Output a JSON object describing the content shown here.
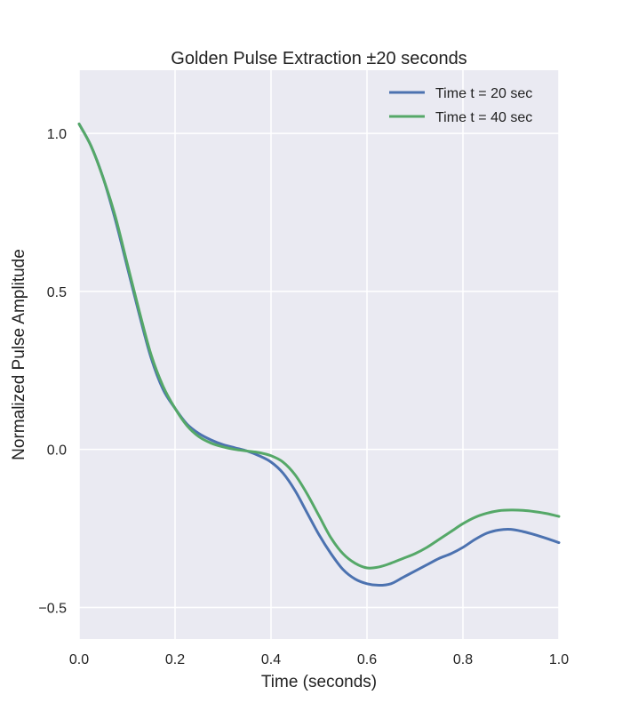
{
  "chart_data": {
    "type": "line",
    "title": "Golden Pulse Extraction ±20 seconds",
    "xlabel": "Time (seconds)",
    "ylabel": "Normalized Pulse Amplitude",
    "xlim": [
      0.0,
      1.0
    ],
    "ylim": [
      -0.6,
      1.2
    ],
    "xticks": [
      0.0,
      0.2,
      0.4,
      0.6,
      0.8,
      1.0
    ],
    "xtick_labels": [
      "0.0",
      "0.2",
      "0.4",
      "0.6",
      "0.8",
      "1.0"
    ],
    "yticks": [
      -0.5,
      0.0,
      0.5,
      1.0
    ],
    "ytick_labels": [
      "−0.5",
      "0.0",
      "0.5",
      "1.0"
    ],
    "grid": true,
    "legend_position": "top-right",
    "background_color": "#eaeaf2",
    "grid_color": "#ffffff",
    "series": [
      {
        "name": "Time t = 20 sec",
        "color": "#4c72b0",
        "x": [
          0.0,
          0.025,
          0.05,
          0.075,
          0.1,
          0.125,
          0.15,
          0.175,
          0.2,
          0.225,
          0.25,
          0.275,
          0.3,
          0.325,
          0.35,
          0.375,
          0.4,
          0.425,
          0.45,
          0.475,
          0.5,
          0.525,
          0.55,
          0.575,
          0.6,
          0.625,
          0.65,
          0.675,
          0.7,
          0.725,
          0.75,
          0.775,
          0.8,
          0.825,
          0.85,
          0.875,
          0.9,
          0.925,
          0.95,
          0.975,
          1.0
        ],
        "y": [
          1.03,
          0.96,
          0.86,
          0.73,
          0.58,
          0.43,
          0.29,
          0.19,
          0.13,
          0.08,
          0.05,
          0.03,
          0.015,
          0.005,
          -0.005,
          -0.02,
          -0.04,
          -0.075,
          -0.13,
          -0.2,
          -0.27,
          -0.33,
          -0.38,
          -0.41,
          -0.425,
          -0.43,
          -0.425,
          -0.405,
          -0.385,
          -0.365,
          -0.345,
          -0.33,
          -0.31,
          -0.285,
          -0.265,
          -0.255,
          -0.253,
          -0.26,
          -0.27,
          -0.282,
          -0.295
        ]
      },
      {
        "name": "Time t = 40 sec",
        "color": "#55a868",
        "x": [
          0.0,
          0.025,
          0.05,
          0.075,
          0.1,
          0.125,
          0.15,
          0.175,
          0.2,
          0.225,
          0.25,
          0.275,
          0.3,
          0.325,
          0.35,
          0.375,
          0.4,
          0.425,
          0.45,
          0.475,
          0.5,
          0.525,
          0.55,
          0.575,
          0.6,
          0.625,
          0.65,
          0.675,
          0.7,
          0.725,
          0.75,
          0.775,
          0.8,
          0.825,
          0.85,
          0.875,
          0.9,
          0.925,
          0.95,
          0.975,
          1.0
        ],
        "y": [
          1.03,
          0.96,
          0.86,
          0.74,
          0.59,
          0.44,
          0.3,
          0.2,
          0.13,
          0.075,
          0.04,
          0.02,
          0.008,
          0.0,
          -0.005,
          -0.01,
          -0.02,
          -0.04,
          -0.08,
          -0.14,
          -0.21,
          -0.28,
          -0.33,
          -0.36,
          -0.375,
          -0.372,
          -0.36,
          -0.345,
          -0.33,
          -0.31,
          -0.285,
          -0.26,
          -0.235,
          -0.215,
          -0.202,
          -0.194,
          -0.192,
          -0.193,
          -0.197,
          -0.203,
          -0.212
        ]
      }
    ]
  }
}
